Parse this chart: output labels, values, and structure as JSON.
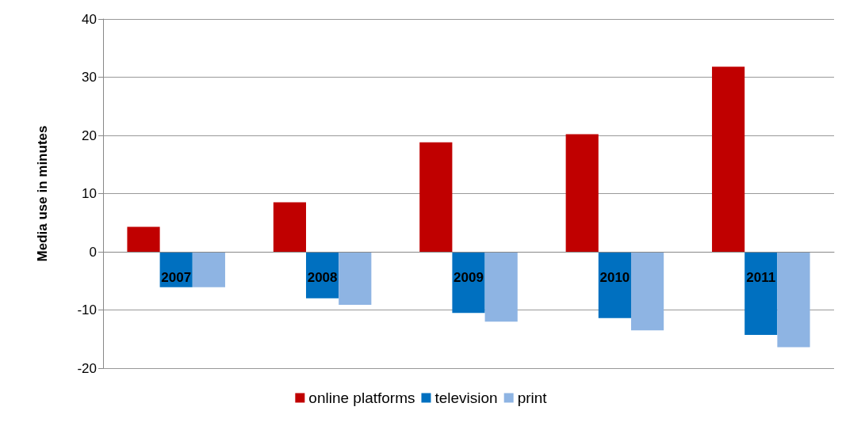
{
  "chart_data": {
    "type": "bar",
    "ylabel": "Media use in minutes",
    "categories": [
      "2007",
      "2008",
      "2009",
      "2010",
      "2011"
    ],
    "series": [
      {
        "name": "online platforms",
        "color": "#c00000",
        "values": [
          4.3,
          8.5,
          18.8,
          20.2,
          31.8
        ]
      },
      {
        "name": "television",
        "color": "#0070c0",
        "values": [
          -6.1,
          -8.0,
          -10.5,
          -11.4,
          -14.3
        ]
      },
      {
        "name": "print",
        "color": "#8eb4e3",
        "values": [
          -6.1,
          -9.1,
          -12.0,
          -13.5,
          -16.4
        ]
      }
    ],
    "ylim": [
      -20,
      40
    ],
    "yticks": [
      -20,
      -10,
      0,
      10,
      20,
      30,
      40
    ],
    "grid": "y",
    "legend": "bottom"
  }
}
